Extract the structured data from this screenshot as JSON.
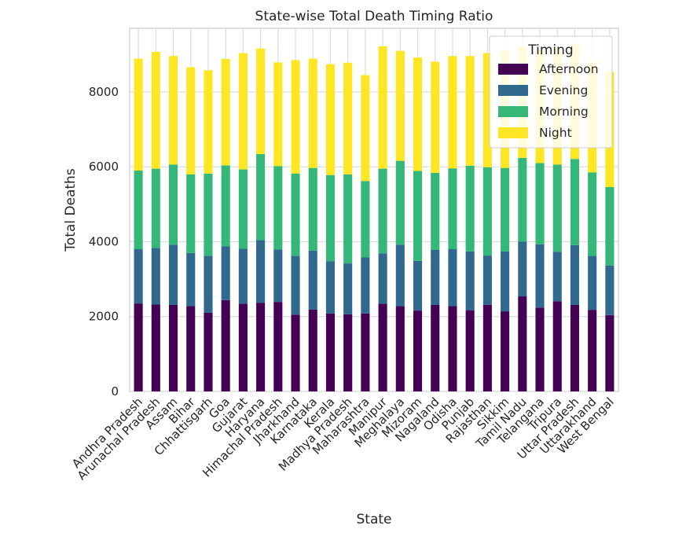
{
  "chart_data": {
    "type": "bar",
    "stacked": true,
    "title": "State-wise Total Death Timing Ratio",
    "xlabel": "State",
    "ylabel": "Total Deaths",
    "ylim": [
      0,
      9700
    ],
    "yticks": [
      0,
      2000,
      4000,
      6000,
      8000
    ],
    "grid": true,
    "legend": {
      "title": "Timing",
      "placement": "top-right"
    },
    "categories": [
      "Andhra Pradesh",
      "Arunachal Pradesh",
      "Assam",
      "Bihar",
      "Chhattisgarh",
      "Goa",
      "Gujarat",
      "Haryana",
      "Himachal Pradesh",
      "Jharkhand",
      "Karnataka",
      "Kerala",
      "Madhya Pradesh",
      "Maharashtra",
      "Manipur",
      "Meghalaya",
      "Mizoram",
      "Nagaland",
      "Odisha",
      "Punjab",
      "Rajasthan",
      "Sikkim",
      "Tamil Nadu",
      "Telangana",
      "Tripura",
      "Uttar Pradesh",
      "Uttarakhand",
      "West Bengal"
    ],
    "series": [
      {
        "name": "Afternoon",
        "color": "#440154",
        "values": [
          2350,
          2320,
          2310,
          2280,
          2100,
          2440,
          2340,
          2370,
          2390,
          2050,
          2190,
          2080,
          2060,
          2080,
          2340,
          2280,
          2160,
          2310,
          2280,
          2170,
          2310,
          2140,
          2540,
          2240,
          2410,
          2310,
          2180,
          2040
        ]
      },
      {
        "name": "Evening",
        "color": "#31688e",
        "values": [
          1450,
          1510,
          1610,
          1420,
          1520,
          1440,
          1470,
          1670,
          1400,
          1570,
          1570,
          1400,
          1360,
          1500,
          1350,
          1640,
          1330,
          1470,
          1520,
          1570,
          1320,
          1600,
          1460,
          1690,
          1320,
          1600,
          1440,
          1320
        ]
      },
      {
        "name": "Morning",
        "color": "#35b779",
        "values": [
          2100,
          2120,
          2140,
          2100,
          2200,
          2160,
          2120,
          2300,
          2230,
          2200,
          2210,
          2300,
          2380,
          2040,
          2260,
          2240,
          2400,
          2060,
          2160,
          2290,
          2360,
          2230,
          2240,
          2170,
          2330,
          2300,
          2230,
          2100
        ]
      },
      {
        "name": "Night",
        "color": "#fde725",
        "values": [
          2990,
          3120,
          2900,
          2860,
          2760,
          2840,
          3110,
          2820,
          2770,
          3030,
          2920,
          2960,
          2980,
          2830,
          3270,
          2940,
          3030,
          2970,
          3000,
          2930,
          3050,
          3130,
          2980,
          3030,
          3120,
          3050,
          2950,
          3080
        ]
      }
    ]
  }
}
